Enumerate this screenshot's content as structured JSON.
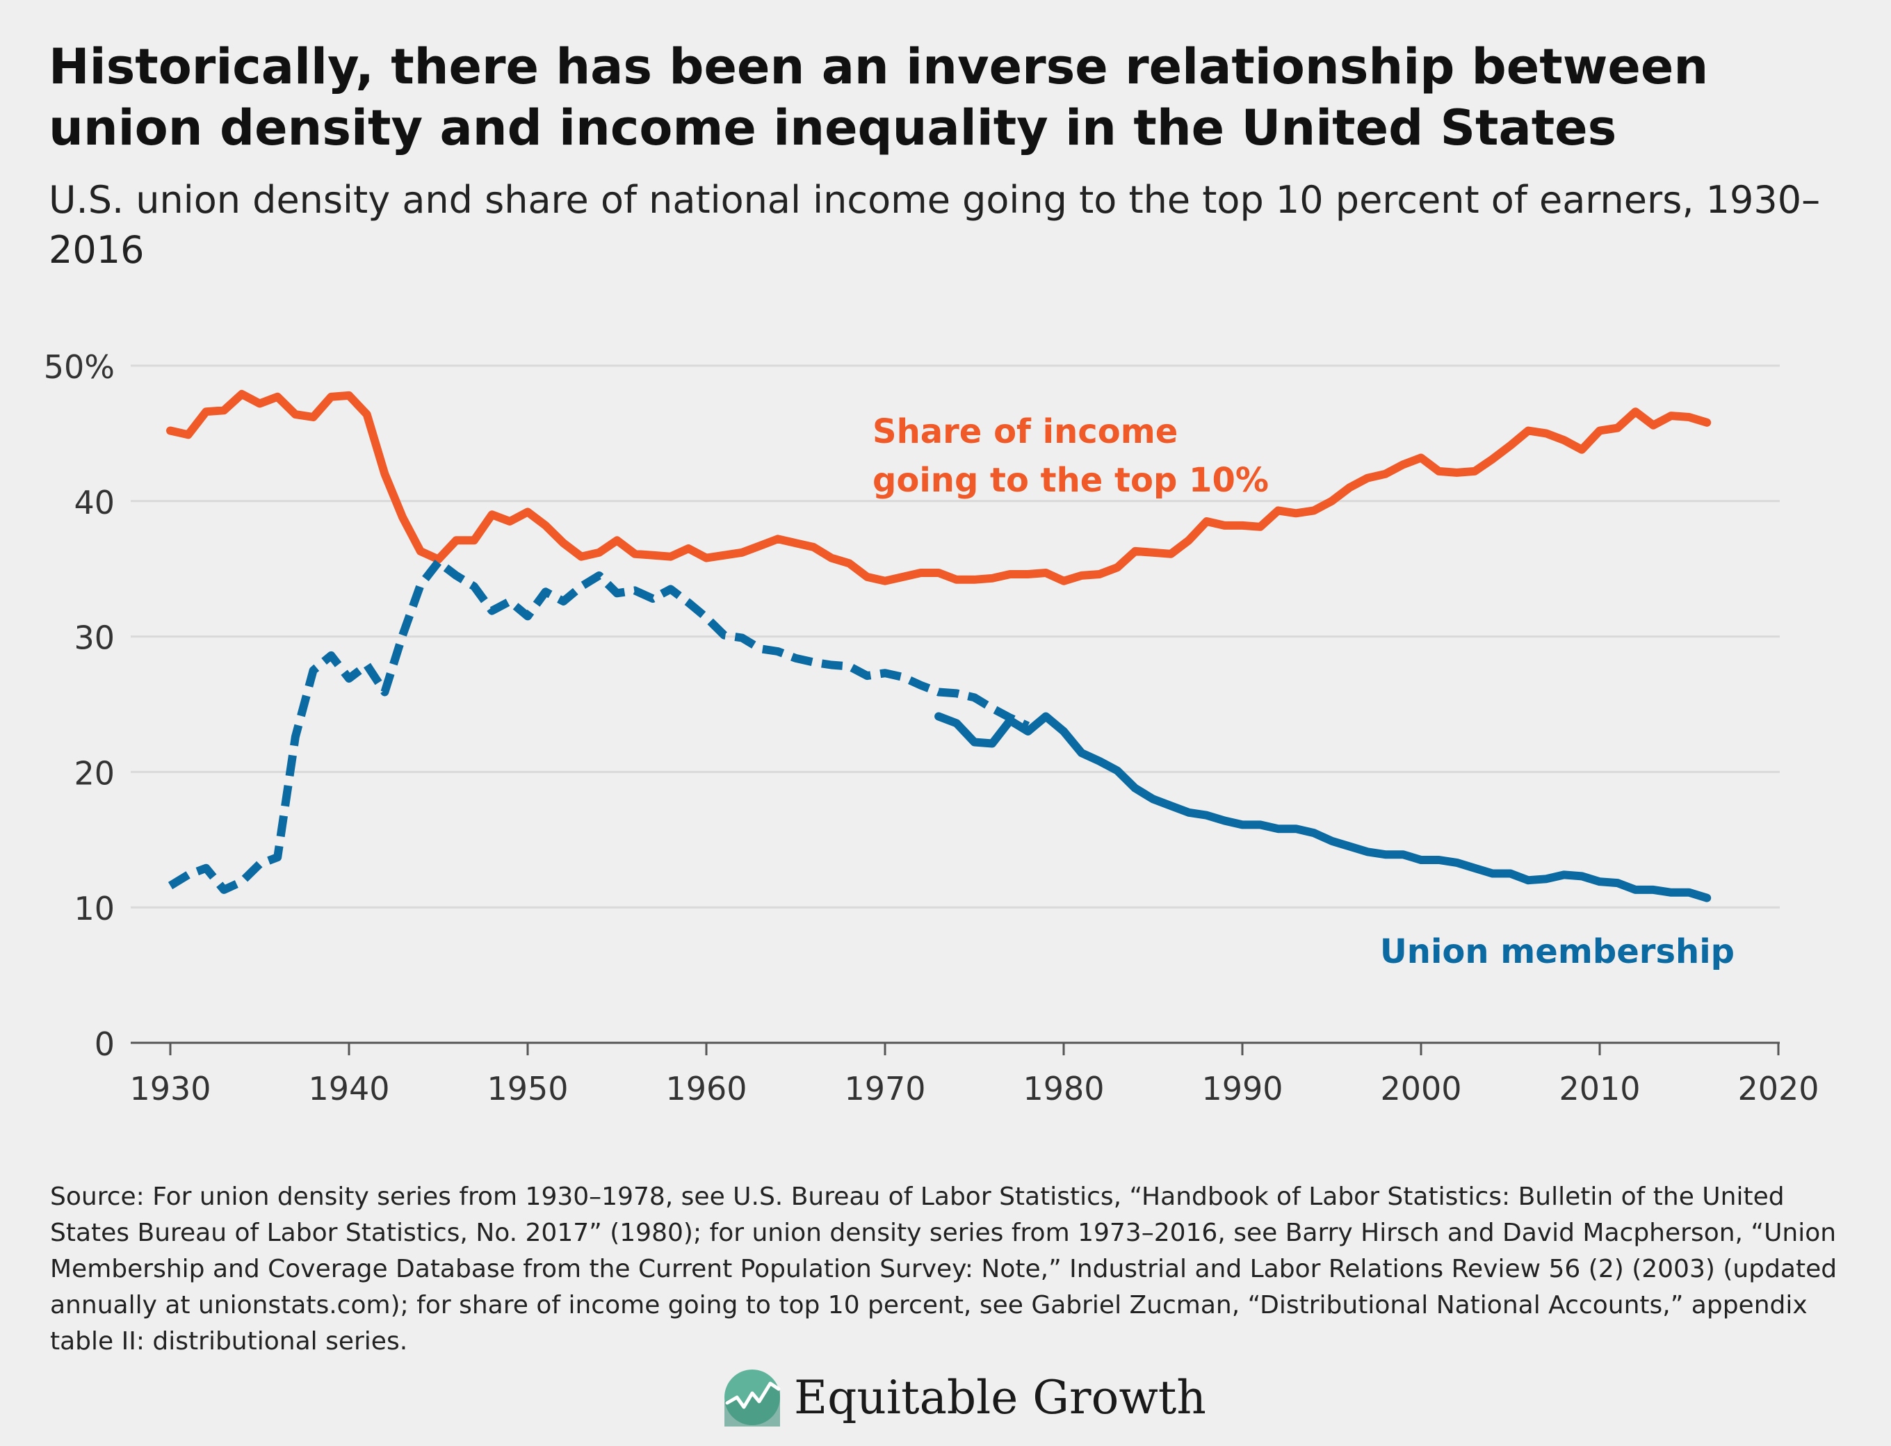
{
  "header": {
    "title": "Historically, there has been an inverse relationship between union density and income inequality in the United States",
    "subtitle": "U.S. union density and share of national income going to the top 10 percent of earners, 1930–2016"
  },
  "footer": {
    "source": "Source: For union density series from 1930–1978, see U.S. Bureau of Labor Statistics, “Handbook of Labor Statistics: Bulletin of the United States Bureau of Labor Statistics, No. 2017” (1980); for union density series from 1973–2016, see Barry Hirsch and David Macpherson, “Union Membership and Coverage Database from the Current Population Survey: Note,” Industrial and Labor Relations Review 56 (2) (2003) (updated annually at unionstats.com); for share of income going to top 10 percent, see Gabriel Zucman, “Distributional National Accounts,” appendix table II: distributional series.",
    "brand": "Equitable Growth",
    "brand_icon": "rising-line-logo-icon"
  },
  "colors": {
    "income": "#f05a28",
    "union": "#0a6aa1",
    "grid": "#d9d9d9",
    "axis": "#555555",
    "text": "#333333",
    "brand_green": "#5fb39a"
  },
  "chart_data": {
    "type": "line",
    "xlim": [
      1930,
      2020
    ],
    "ylim": [
      0,
      50
    ],
    "x_ticks": [
      "1930",
      "1940",
      "1950",
      "1960",
      "1970",
      "1980",
      "1990",
      "2000",
      "2010",
      "2020"
    ],
    "y_ticks": [
      "50%",
      "40",
      "30",
      "20",
      "10",
      "0"
    ],
    "y_tick_values": [
      50,
      40,
      30,
      20,
      10,
      0
    ],
    "grid": "horizontal",
    "series": [
      {
        "name": "Share of income going to the top 10%",
        "label_lines": [
          "Share of income",
          "going to the top 10%"
        ],
        "color": "#f05a28",
        "style": "solid",
        "points": [
          [
            1930,
            45.2
          ],
          [
            1931,
            44.9
          ],
          [
            1932,
            46.6
          ],
          [
            1933,
            46.7
          ],
          [
            1934,
            47.9
          ],
          [
            1935,
            47.2
          ],
          [
            1936,
            47.7
          ],
          [
            1937,
            46.4
          ],
          [
            1938,
            46.2
          ],
          [
            1939,
            47.7
          ],
          [
            1940,
            47.8
          ],
          [
            1941,
            46.4
          ],
          [
            1942,
            42
          ],
          [
            1943,
            38.8
          ],
          [
            1944,
            36.3
          ],
          [
            1945,
            35.7
          ],
          [
            1946,
            37.1
          ],
          [
            1947,
            37.1
          ],
          [
            1948,
            39
          ],
          [
            1949,
            38.5
          ],
          [
            1950,
            39.2
          ],
          [
            1951,
            38.2
          ],
          [
            1952,
            36.9
          ],
          [
            1953,
            35.9
          ],
          [
            1954,
            36.2
          ],
          [
            1955,
            37.1
          ],
          [
            1956,
            36.1
          ],
          [
            1957,
            36
          ],
          [
            1958,
            35.9
          ],
          [
            1959,
            36.5
          ],
          [
            1960,
            35.8
          ],
          [
            1961,
            36
          ],
          [
            1962,
            36.2
          ],
          [
            1963,
            36.7
          ],
          [
            1964,
            37.2
          ],
          [
            1965,
            36.9
          ],
          [
            1966,
            36.6
          ],
          [
            1967,
            35.8
          ],
          [
            1968,
            35.4
          ],
          [
            1969,
            34.4
          ],
          [
            1970,
            34.1
          ],
          [
            1971,
            34.4
          ],
          [
            1972,
            34.7
          ],
          [
            1973,
            34.7
          ],
          [
            1974,
            34.2
          ],
          [
            1975,
            34.2
          ],
          [
            1976,
            34.3
          ],
          [
            1977,
            34.6
          ],
          [
            1978,
            34.6
          ],
          [
            1979,
            34.7
          ],
          [
            1980,
            34.1
          ],
          [
            1981,
            34.5
          ],
          [
            1982,
            34.6
          ],
          [
            1983,
            35.1
          ],
          [
            1984,
            36.3
          ],
          [
            1985,
            36.2
          ],
          [
            1986,
            36.1
          ],
          [
            1987,
            37.1
          ],
          [
            1988,
            38.5
          ],
          [
            1989,
            38.2
          ],
          [
            1990,
            38.2
          ],
          [
            1991,
            38.1
          ],
          [
            1992,
            39.3
          ],
          [
            1993,
            39.1
          ],
          [
            1994,
            39.3
          ],
          [
            1995,
            40
          ],
          [
            1996,
            41
          ],
          [
            1997,
            41.7
          ],
          [
            1998,
            42
          ],
          [
            1999,
            42.7
          ],
          [
            2000,
            43.2
          ],
          [
            2001,
            42.2
          ],
          [
            2002,
            42.1
          ],
          [
            2003,
            42.2
          ],
          [
            2004,
            43.1
          ],
          [
            2005,
            44.1
          ],
          [
            2006,
            45.2
          ],
          [
            2007,
            45
          ],
          [
            2008,
            44.5
          ],
          [
            2009,
            43.8
          ],
          [
            2010,
            45.2
          ],
          [
            2011,
            45.4
          ],
          [
            2012,
            46.6
          ],
          [
            2013,
            45.6
          ],
          [
            2014,
            46.3
          ],
          [
            2015,
            46.2
          ],
          [
            2016,
            45.8
          ]
        ]
      },
      {
        "name": "Union membership",
        "label_lines": [
          "Union membership"
        ],
        "color": "#0a6aa1",
        "style": "dashed",
        "points": [
          [
            1930,
            11.6
          ],
          [
            1931,
            12.4
          ],
          [
            1932,
            12.9
          ],
          [
            1933,
            11.3
          ],
          [
            1934,
            11.9
          ],
          [
            1935,
            13.2
          ],
          [
            1936,
            13.7
          ],
          [
            1937,
            22.6
          ],
          [
            1938,
            27.5
          ],
          [
            1939,
            28.6
          ],
          [
            1940,
            26.9
          ],
          [
            1941,
            27.9
          ],
          [
            1942,
            25.9
          ],
          [
            1943,
            30.1
          ],
          [
            1944,
            33.8
          ],
          [
            1945,
            35.5
          ],
          [
            1946,
            34.5
          ],
          [
            1947,
            33.7
          ],
          [
            1948,
            31.9
          ],
          [
            1949,
            32.6
          ],
          [
            1950,
            31.5
          ],
          [
            1951,
            33.3
          ],
          [
            1952,
            32.6
          ],
          [
            1953,
            33.7
          ],
          [
            1954,
            34.5
          ],
          [
            1955,
            33.2
          ],
          [
            1956,
            33.4
          ],
          [
            1957,
            32.8
          ],
          [
            1958,
            33.5
          ],
          [
            1959,
            32.5
          ],
          [
            1960,
            31.4
          ],
          [
            1961,
            30.1
          ],
          [
            1962,
            29.9
          ],
          [
            1963,
            29.1
          ],
          [
            1964,
            28.9
          ],
          [
            1965,
            28.4
          ],
          [
            1966,
            28.1
          ],
          [
            1967,
            27.9
          ],
          [
            1968,
            27.8
          ],
          [
            1969,
            27.1
          ],
          [
            1970,
            27.3
          ],
          [
            1971,
            27
          ],
          [
            1972,
            26.4
          ],
          [
            1973,
            25.9
          ],
          [
            1974,
            25.8
          ],
          [
            1975,
            25.5
          ],
          [
            1976,
            24.7
          ],
          [
            1977,
            24
          ],
          [
            1978,
            23.4
          ]
        ]
      },
      {
        "name": "Union membership",
        "color": "#0a6aa1",
        "style": "solid",
        "points": [
          [
            1973,
            24.1
          ],
          [
            1974,
            23.6
          ],
          [
            1975,
            22.2
          ],
          [
            1976,
            22.1
          ],
          [
            1977,
            23.8
          ],
          [
            1978,
            23
          ],
          [
            1979,
            24.1
          ],
          [
            1980,
            23
          ],
          [
            1981,
            21.4
          ],
          [
            1982,
            20.8
          ],
          [
            1983,
            20.1
          ],
          [
            1984,
            18.8
          ],
          [
            1985,
            18
          ],
          [
            1986,
            17.5
          ],
          [
            1987,
            17
          ],
          [
            1988,
            16.8
          ],
          [
            1989,
            16.4
          ],
          [
            1990,
            16.1
          ],
          [
            1991,
            16.1
          ],
          [
            1992,
            15.8
          ],
          [
            1993,
            15.8
          ],
          [
            1994,
            15.5
          ],
          [
            1995,
            14.9
          ],
          [
            1996,
            14.5
          ],
          [
            1997,
            14.1
          ],
          [
            1998,
            13.9
          ],
          [
            1999,
            13.9
          ],
          [
            2000,
            13.5
          ],
          [
            2001,
            13.5
          ],
          [
            2002,
            13.3
          ],
          [
            2003,
            12.9
          ],
          [
            2004,
            12.5
          ],
          [
            2005,
            12.5
          ],
          [
            2006,
            12
          ],
          [
            2007,
            12.1
          ],
          [
            2008,
            12.4
          ],
          [
            2009,
            12.3
          ],
          [
            2010,
            11.9
          ],
          [
            2011,
            11.8
          ],
          [
            2012,
            11.3
          ],
          [
            2013,
            11.3
          ],
          [
            2014,
            11.1
          ],
          [
            2015,
            11.1
          ],
          [
            2016,
            10.7
          ]
        ]
      }
    ]
  }
}
